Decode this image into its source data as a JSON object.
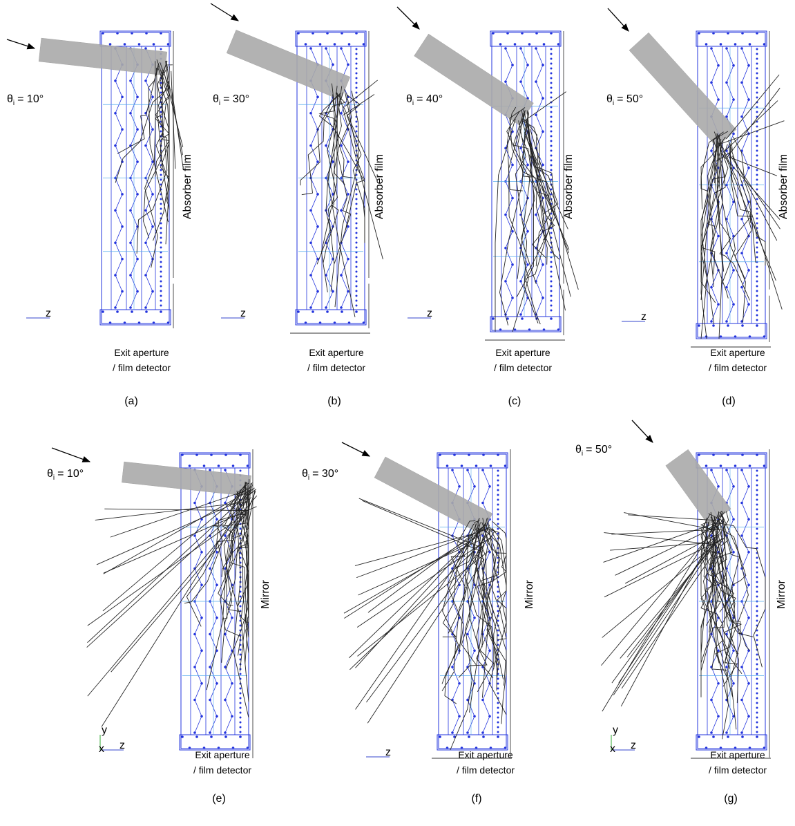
{
  "panels": [
    {
      "caption": "(a)",
      "theta": {
        "symbol": "θ",
        "subscript": "i",
        "value": "= 10°"
      },
      "side_label": "Absorber film",
      "exit_label": [
        "Exit aperture",
        "/ film detector"
      ],
      "axis_labels": [
        "z"
      ]
    },
    {
      "caption": "(b)",
      "theta": {
        "symbol": "θ",
        "subscript": "i",
        "value": "= 30°"
      },
      "side_label": "Absorber film",
      "exit_label": [
        "Exit aperture",
        "/ film detector"
      ],
      "axis_labels": [
        "z"
      ]
    },
    {
      "caption": "(c)",
      "theta": {
        "symbol": "θ",
        "subscript": "i",
        "value": "= 40°"
      },
      "side_label": "Absorber film",
      "exit_label": [
        "Exit aperture",
        "/ film detector"
      ],
      "axis_labels": [
        "z"
      ]
    },
    {
      "caption": "(d)",
      "theta": {
        "symbol": "θ",
        "subscript": "i",
        "value": "= 50°"
      },
      "side_label": "Absorber film",
      "exit_label": [
        "Exit aperture",
        "/ film detector"
      ],
      "axis_labels": [
        "z"
      ]
    },
    {
      "caption": "(e)",
      "theta": {
        "symbol": "θ",
        "subscript": "i",
        "value": "= 10°"
      },
      "side_label": "Mirror",
      "exit_label": [
        "Exit aperture",
        "/ film detector"
      ],
      "axis_labels": [
        "y",
        "x",
        "z"
      ]
    },
    {
      "caption": "(f)",
      "theta": {
        "symbol": "θ",
        "subscript": "i",
        "value": "= 30°"
      },
      "side_label": "Mirror",
      "exit_label": [
        "Exit aperture",
        "/ film detector"
      ],
      "axis_labels": [
        "z"
      ]
    },
    {
      "caption": "(g)",
      "theta": {
        "symbol": "θ",
        "subscript": "i",
        "value": "= 50°"
      },
      "side_label": "Mirror",
      "exit_label": [
        "Exit aperture",
        "/ film detector"
      ],
      "axis_labels": [
        "y",
        "x",
        "z"
      ]
    }
  ]
}
